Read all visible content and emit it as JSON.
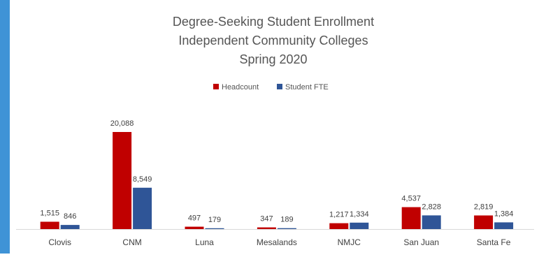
{
  "chart_data": {
    "type": "bar",
    "title_lines": [
      "Degree-Seeking Student Enrollment",
      "Independent Community Colleges",
      "Spring 2020"
    ],
    "xlabel": "",
    "ylabel": "",
    "categories": [
      "Clovis",
      "CNM",
      "Luna",
      "Mesalands",
      "NMJC",
      "San Juan",
      "Santa Fe"
    ],
    "series": [
      {
        "name": "Headcount",
        "color": "#c00000",
        "values": [
          1515,
          20088,
          497,
          347,
          1217,
          4537,
          2819
        ],
        "labels": [
          "1,515",
          "20,088",
          "497",
          "347",
          "1,217",
          "4,537",
          "2,819"
        ]
      },
      {
        "name": "Student FTE",
        "color": "#2f5597",
        "values": [
          846,
          8549,
          179,
          189,
          1334,
          2828,
          1384
        ],
        "labels": [
          "846",
          "8,549",
          "179",
          "189",
          "1,334",
          "2,828",
          "1,384"
        ]
      }
    ],
    "ylim": [
      0,
      20088
    ],
    "grid": false,
    "legend_position": "top-center"
  }
}
